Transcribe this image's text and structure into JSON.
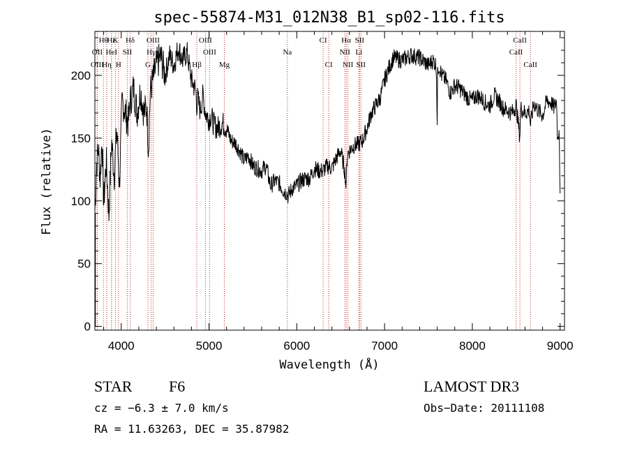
{
  "chart_data": {
    "type": "line",
    "title": "spec-55874-M31_012N38_B1_sp02-116.fits",
    "xlabel": "Wavelength (Å)",
    "ylabel": "Flux (relative)",
    "xlim": [
      3700,
      9050
    ],
    "ylim": [
      -3,
      235
    ],
    "xticks": [
      4000,
      5000,
      6000,
      7000,
      8000,
      9000
    ],
    "xtick_labels": [
      "4000",
      "5000",
      "6000",
      "7000",
      "8000",
      "9000"
    ],
    "yticks": [
      0,
      50,
      100,
      150,
      200
    ],
    "ytick_labels": [
      "0",
      "50",
      "100",
      "150",
      "200"
    ],
    "grid": false,
    "series": [
      {
        "name": "flux",
        "color": "#000000",
        "x": [
          3700,
          3720,
          3740,
          3760,
          3780,
          3800,
          3830,
          3860,
          3890,
          3920,
          3950,
          3980,
          4010,
          4040,
          4080,
          4100,
          4140,
          4180,
          4220,
          4260,
          4290,
          4310,
          4330,
          4340,
          4360,
          4400,
          4450,
          4500,
          4550,
          4600,
          4650,
          4700,
          4750,
          4800,
          4850,
          4861,
          4870,
          4900,
          4930,
          4960,
          5000,
          5020,
          5060,
          5100,
          5150,
          5200,
          5250,
          5300,
          5350,
          5400,
          5450,
          5500,
          5550,
          5600,
          5650,
          5700,
          5750,
          5800,
          5850,
          5890,
          5900,
          5950,
          6000,
          6050,
          6100,
          6150,
          6200,
          6250,
          6300,
          6350,
          6400,
          6450,
          6500,
          6530,
          6550,
          6563,
          6570,
          6580,
          6600,
          6620,
          6650,
          6700,
          6750,
          6800,
          6850,
          6900,
          6950,
          7000,
          7050,
          7100,
          7200,
          7300,
          7400,
          7500,
          7550,
          7590,
          7600,
          7605,
          7610,
          7620,
          7650,
          7700,
          7750,
          7800,
          7850,
          7900,
          7950,
          8000,
          8050,
          8100,
          8150,
          8200,
          8250,
          8300,
          8350,
          8400,
          8450,
          8500,
          8542,
          8550,
          8600,
          8650,
          8662,
          8700,
          8750,
          8800,
          8850,
          8900,
          8930,
          8960,
          8970,
          8990,
          9000
        ],
        "values": [
          92,
          130,
          142,
          118,
          150,
          98,
          132,
          88,
          148,
          120,
          158,
          112,
          180,
          172,
          162,
          178,
          190,
          170,
          188,
          170,
          175,
          140,
          186,
          190,
          196,
          208,
          215,
          200,
          216,
          208,
          222,
          212,
          218,
          196,
          188,
          175,
          182,
          172,
          184,
          170,
          165,
          168,
          160,
          158,
          162,
          158,
          148,
          146,
          140,
          132,
          136,
          128,
          126,
          124,
          128,
          112,
          116,
          114,
          108,
          106,
          104,
          110,
          112,
          116,
          118,
          118,
          126,
          124,
          124,
          128,
          126,
          134,
          140,
          130,
          122,
          110,
          132,
          138,
          140,
          142,
          144,
          145,
          148,
          158,
          170,
          176,
          182,
          196,
          206,
          214,
          212,
          216,
          214,
          208,
          212,
          208,
          160,
          210,
          206,
          208,
          200,
          196,
          186,
          192,
          190,
          186,
          182,
          180,
          184,
          182,
          178,
          176,
          184,
          180,
          174,
          172,
          170,
          176,
          150,
          174,
          170,
          172,
          160,
          178,
          172,
          168,
          180,
          178,
          174,
          180,
          148,
          160,
          100
        ]
      }
    ],
    "lines": [
      {
        "label": "Hθ",
        "x": 3797,
        "row": 1
      },
      {
        "label": "OII",
        "x": 3727,
        "row": 2
      },
      {
        "label": "OIII",
        "x": 3727,
        "row": 3
      },
      {
        "label": "Hη",
        "x": 3835,
        "row": 3
      },
      {
        "label": "Hε",
        "x": 3889,
        "row": 1
      },
      {
        "label": "HeI",
        "x": 3889,
        "row": 2
      },
      {
        "label": "K",
        "x": 3934,
        "row": 1
      },
      {
        "label": "H",
        "x": 3969,
        "row": 3
      },
      {
        "label": "SII",
        "x": 4069,
        "row": 2
      },
      {
        "label": "Hδ",
        "x": 4102,
        "row": 1
      },
      {
        "label": "OIII",
        "x": 4363,
        "row": 1
      },
      {
        "label": "Hγ",
        "x": 4340,
        "row": 2
      },
      {
        "label": "G",
        "x": 4304,
        "row": 3
      },
      {
        "label": "OIII",
        "x": 4959,
        "row": 1
      },
      {
        "label": "OIII",
        "x": 5007,
        "row": 2
      },
      {
        "label": "Hβ",
        "x": 4861,
        "row": 3
      },
      {
        "label": "Mg",
        "x": 5175,
        "row": 3
      },
      {
        "label": "Na",
        "x": 5893,
        "row": 2
      },
      {
        "label": "CI",
        "x": 6300,
        "row": 1
      },
      {
        "label": "CI",
        "x": 6364,
        "row": 3
      },
      {
        "label": "Hα",
        "x": 6563,
        "row": 1
      },
      {
        "label": "NII",
        "x": 6548,
        "row": 2
      },
      {
        "label": "NII",
        "x": 6583,
        "row": 3
      },
      {
        "label": "SII",
        "x": 6716,
        "row": 1
      },
      {
        "label": "Li",
        "x": 6707,
        "row": 2
      },
      {
        "label": "SII",
        "x": 6731,
        "row": 3
      },
      {
        "label": "CaII",
        "x": 8498,
        "row": 2
      },
      {
        "label": "CaII",
        "x": 8542,
        "row": 1
      },
      {
        "label": "CaII",
        "x": 8662,
        "row": 3
      }
    ],
    "line_color": "#cc2222",
    "curve_color": "#000000",
    "axis_color": "#000000"
  },
  "info": {
    "class": "STAR",
    "subclass": "F6",
    "survey": "LAMOST DR3",
    "cz": "cz = −6.3 ± 7.0 km/s",
    "obsdate": "Obs−Date: 20111108",
    "coords": "RA =  11.63263, DEC =  35.87982"
  }
}
